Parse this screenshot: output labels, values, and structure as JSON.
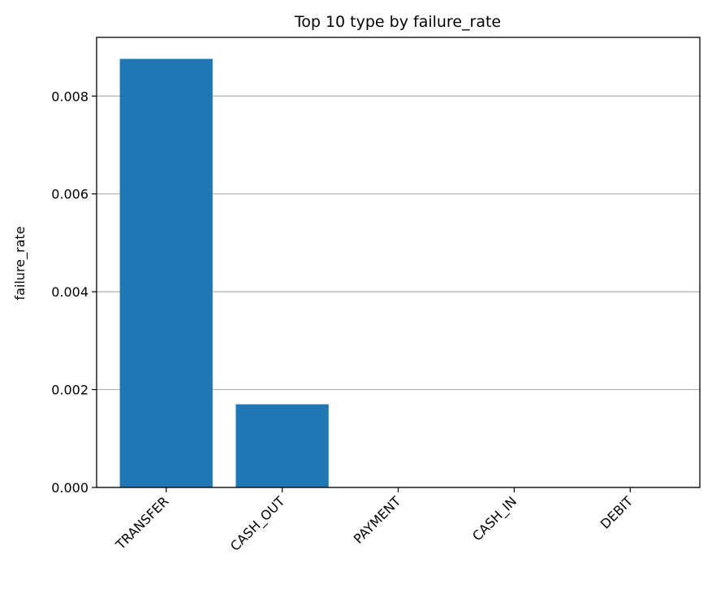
{
  "chart_data": {
    "type": "bar",
    "title": "Top 10 type by failure_rate",
    "xlabel": "",
    "ylabel": "failure_rate",
    "categories": [
      "TRANSFER",
      "CASH_OUT",
      "PAYMENT",
      "CASH_IN",
      "DEBIT"
    ],
    "values": [
      0.00876,
      0.0017,
      0.0,
      0.0,
      0.0
    ],
    "ylim": [
      0.0,
      0.0092
    ],
    "yticks": [
      0.0,
      0.002,
      0.004,
      0.006,
      0.008
    ],
    "ytick_labels": [
      "0.000",
      "0.002",
      "0.004",
      "0.006",
      "0.008"
    ],
    "grid": "y",
    "legend": "none",
    "bar_color": "#1f77b4",
    "grid_color": "#b0b0b0"
  }
}
